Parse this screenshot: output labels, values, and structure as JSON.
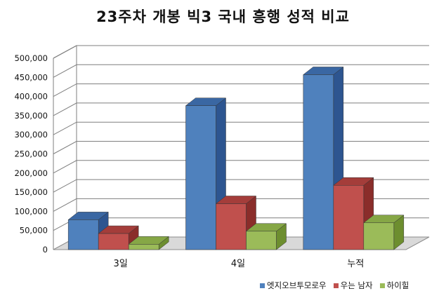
{
  "chart_data": {
    "type": "bar",
    "title": "23주차 개봉 빅3 국내 흥행 성적 비교",
    "xlabel": "",
    "ylabel": "",
    "categories": [
      "3일",
      "4일",
      "누적"
    ],
    "series": [
      {
        "name": "엣지오브투모로우",
        "values": [
          78000,
          376000,
          457000
        ],
        "color": "#4F81BD",
        "side_color": "#2D5590",
        "top_color": "#3A67A3"
      },
      {
        "name": "우는 남자",
        "values": [
          42000,
          120000,
          168000
        ],
        "color": "#C0504D",
        "side_color": "#8A2D2A",
        "top_color": "#A43D3A"
      },
      {
        "name": "하이힐",
        "values": [
          14000,
          48000,
          70000
        ],
        "color": "#9BBB59",
        "side_color": "#6D8E2F",
        "top_color": "#86A746"
      }
    ],
    "ylim": [
      0,
      500000
    ],
    "yticks": [
      "0",
      "50,000",
      "100,000",
      "150,000",
      "200,000",
      "250,000",
      "300,000",
      "350,000",
      "400,000",
      "450,000",
      "500,000"
    ],
    "grid": true,
    "legend_position": "bottom-right"
  }
}
